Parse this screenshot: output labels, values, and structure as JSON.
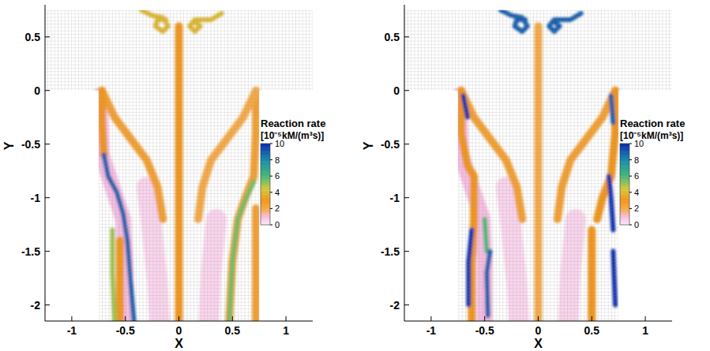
{
  "chart_data": [
    {
      "type": "contour",
      "xlabel": "X",
      "ylabel": "Y",
      "xlim": [
        -1.25,
        1.25
      ],
      "ylim": [
        -2.15,
        0.8
      ],
      "xticks": [
        -1,
        -0.5,
        0,
        0.5,
        1
      ],
      "yticks": [
        -2,
        -1.5,
        -1,
        -0.5,
        0,
        0.5
      ],
      "domain": {
        "x": [
          -0.75,
          -0.75,
          -1.25,
          -1.25,
          1.25,
          1.25,
          0.75,
          0.75
        ],
        "y": [
          -2.15,
          0,
          0,
          0.75,
          0.75,
          0,
          0,
          -2.15
        ]
      },
      "colorbar": {
        "title": "Reaction rate",
        "units": "[10⁻⁵kM/(m³s)]",
        "range": [
          0,
          10
        ],
        "ticks": [
          0,
          2,
          4,
          6,
          8,
          10
        ]
      },
      "bands": [
        {
          "x": [
            -0.3,
            -0.25,
            -0.2,
            -0.18
          ],
          "y": [
            -0.9,
            -1.3,
            -1.8,
            -2.15
          ],
          "value": 0.5
        },
        {
          "x": [
            0.35,
            0.3,
            0.28
          ],
          "y": [
            -1.2,
            -1.7,
            -2.15
          ],
          "value": 0.5
        },
        {
          "x": [
            -0.74,
            -0.72,
            -0.62,
            -0.52,
            -0.5,
            -0.5
          ],
          "y": [
            -0.05,
            -0.6,
            -0.9,
            -1.2,
            -1.6,
            -2.15
          ],
          "value": 1
        },
        {
          "x": [
            0.72,
            0.72,
            0.7,
            0.62,
            0.55,
            0.5,
            0.47
          ],
          "y": [
            0,
            -0.4,
            -0.8,
            -1.0,
            -1.2,
            -1.6,
            -2.15
          ],
          "value": 2.5
        },
        {
          "x": [
            -0.72,
            -0.6,
            -0.45,
            -0.3,
            -0.2,
            -0.15
          ],
          "y": [
            0,
            -0.25,
            -0.45,
            -0.65,
            -0.9,
            -1.2
          ],
          "value": 2.5
        },
        {
          "x": [
            0.72,
            0.6,
            0.45,
            0.3,
            0.22,
            0.18
          ],
          "y": [
            0,
            -0.25,
            -0.45,
            -0.65,
            -0.9,
            -1.2
          ],
          "value": 2
        },
        {
          "x": [
            -0.72,
            -0.72,
            -0.7
          ],
          "y": [
            0,
            -0.3,
            -0.6
          ],
          "value": 3
        },
        {
          "x": [
            -0.55,
            -0.55
          ],
          "y": [
            -1.4,
            -2.15
          ],
          "value": 3
        },
        {
          "x": [
            0.72,
            0.72
          ],
          "y": [
            -1.1,
            -2.15
          ],
          "value": 2.5
        },
        {
          "x": [
            -0.62,
            -0.62,
            -0.6
          ],
          "y": [
            -1.3,
            -1.7,
            -2.15
          ],
          "value": 5
        },
        {
          "x": [
            0.7,
            0.62,
            0.55,
            0.5,
            0.47
          ],
          "y": [
            -0.85,
            -1.02,
            -1.2,
            -1.6,
            -2.15
          ],
          "value": 5.5
        },
        {
          "x": [
            -0.7,
            -0.66,
            -0.58,
            -0.52,
            -0.48,
            -0.45,
            -0.42
          ],
          "y": [
            -0.6,
            -0.8,
            -0.95,
            -1.15,
            -1.4,
            -1.8,
            -2.15
          ],
          "value": 9
        },
        {
          "x": [
            0,
            0,
            0
          ],
          "y": [
            0.6,
            -1,
            -2.15
          ],
          "value": 3
        },
        {
          "x": [
            -0.35,
            -0.25,
            -0.15,
            -0.1,
            -0.15,
            -0.22,
            -0.2,
            -0.12
          ],
          "y": [
            0.75,
            0.7,
            0.68,
            0.6,
            0.55,
            0.6,
            0.66,
            0.66
          ],
          "value": 4
        },
        {
          "x": [
            0.4,
            0.3,
            0.15,
            0.1,
            0.15,
            0.2,
            0.15
          ],
          "y": [
            0.72,
            0.66,
            0.66,
            0.6,
            0.55,
            0.6,
            0.64
          ],
          "value": 4
        }
      ]
    },
    {
      "type": "contour",
      "xlabel": "X",
      "ylabel": "Y",
      "xlim": [
        -1.25,
        1.25
      ],
      "ylim": [
        -2.15,
        0.8
      ],
      "xticks": [
        -1,
        -0.5,
        0,
        0.5,
        1
      ],
      "yticks": [
        -2,
        -1.5,
        -1,
        -0.5,
        0,
        0.5
      ],
      "domain": {
        "x": [
          -0.75,
          -0.75,
          -1.25,
          -1.25,
          1.25,
          1.25,
          0.75,
          0.75
        ],
        "y": [
          -2.15,
          0,
          0,
          0.75,
          0.75,
          0,
          0,
          -2.15
        ]
      },
      "colorbar": {
        "title": "Reaction rate",
        "units": "[10⁻⁵kM/(m³s)]",
        "range": [
          0,
          10
        ],
        "ticks": [
          0,
          2,
          4,
          6,
          8,
          10
        ]
      },
      "bands": [
        {
          "x": [
            -0.3,
            -0.25,
            -0.2,
            -0.18
          ],
          "y": [
            -0.9,
            -1.3,
            -1.8,
            -2.15
          ],
          "value": 0.5
        },
        {
          "x": [
            0.35,
            0.3,
            0.28
          ],
          "y": [
            -1.2,
            -1.7,
            -2.15
          ],
          "value": 0.5
        },
        {
          "x": [
            -0.74,
            -0.72,
            -0.62,
            -0.52,
            -0.5,
            -0.5
          ],
          "y": [
            -0.05,
            -0.6,
            -0.9,
            -1.2,
            -1.6,
            -2.15
          ],
          "value": 1
        },
        {
          "x": [
            -0.72,
            -0.6,
            -0.45,
            -0.3,
            -0.2,
            -0.15
          ],
          "y": [
            0,
            -0.25,
            -0.45,
            -0.65,
            -0.9,
            -1.2
          ],
          "value": 2.5
        },
        {
          "x": [
            0.72,
            0.6,
            0.45,
            0.3,
            0.22,
            0.18
          ],
          "y": [
            0,
            -0.25,
            -0.45,
            -0.65,
            -0.9,
            -1.2
          ],
          "value": 2.5
        },
        {
          "x": [
            -0.72,
            -0.72,
            -0.66,
            -0.6,
            -0.6,
            -0.62,
            -0.62
          ],
          "y": [
            0,
            -0.4,
            -0.7,
            -0.8,
            -1.2,
            -1.6,
            -2.15
          ],
          "value": 3
        },
        {
          "x": [
            0.72,
            0.72,
            0.68,
            0.6,
            0.55
          ],
          "y": [
            0,
            -0.4,
            -0.8,
            -1.0,
            -1.2
          ],
          "value": 3
        },
        {
          "x": [
            0.5,
            0.5
          ],
          "y": [
            -1.3,
            -2.15
          ],
          "value": 3
        },
        {
          "x": [
            -0.5,
            -0.48
          ],
          "y": [
            -1.2,
            -1.5
          ],
          "value": 6
        },
        {
          "x": [
            -0.7,
            -0.66
          ],
          "y": [
            -0.05,
            -0.25
          ],
          "value": 10
        },
        {
          "x": [
            -0.62,
            -0.65,
            -0.65
          ],
          "y": [
            -1.3,
            -1.6,
            -2.0
          ],
          "value": 10
        },
        {
          "x": [
            -0.45,
            -0.48,
            -0.47
          ],
          "y": [
            -1.5,
            -1.7,
            -2.1
          ],
          "value": 9
        },
        {
          "x": [
            0.66,
            0.68,
            0.7
          ],
          "y": [
            -0.8,
            -1.0,
            -1.3
          ],
          "value": 10
        },
        {
          "x": [
            0.7,
            0.72
          ],
          "y": [
            -1.5,
            -2.0
          ],
          "value": 10
        },
        {
          "x": [
            0.68,
            0.7
          ],
          "y": [
            -0.05,
            -0.3
          ],
          "value": 9
        },
        {
          "x": [
            0,
            0,
            0
          ],
          "y": [
            0.6,
            -1,
            -2.15
          ],
          "value": 2
        },
        {
          "x": [
            -0.35,
            -0.25,
            -0.15,
            -0.1,
            -0.15,
            -0.22,
            -0.2,
            -0.12
          ],
          "y": [
            0.75,
            0.7,
            0.68,
            0.6,
            0.55,
            0.6,
            0.66,
            0.66
          ],
          "value": 9
        },
        {
          "x": [
            0.4,
            0.3,
            0.15,
            0.1,
            0.15,
            0.2,
            0.15
          ],
          "y": [
            0.72,
            0.66,
            0.66,
            0.6,
            0.55,
            0.6,
            0.64
          ],
          "value": 9
        }
      ]
    }
  ]
}
